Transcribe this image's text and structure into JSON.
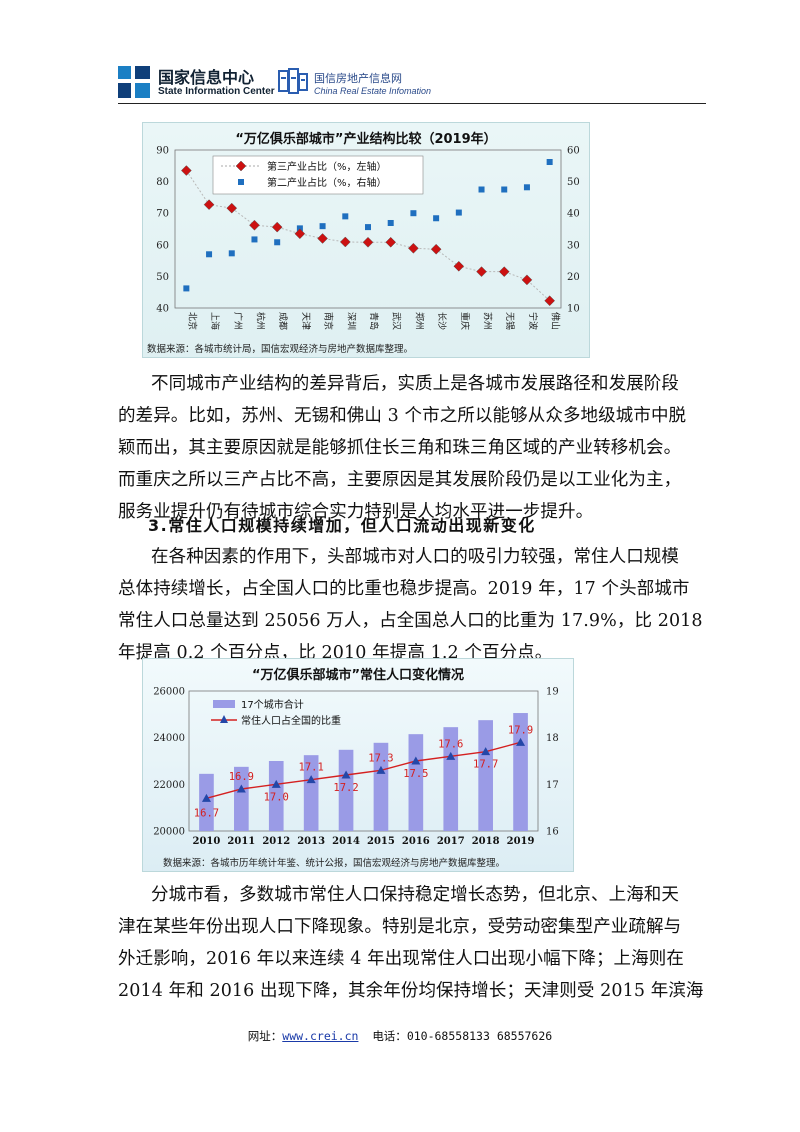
{
  "header": {
    "sic_name_cn": "国家信息中心",
    "sic_name_en": "State Information Center",
    "crei_name_cn": "国信房地产信息网",
    "crei_name_en": "China Real Estate Infomation"
  },
  "colors": {
    "diamond": "#cc1111",
    "square": "#1f6fbf",
    "bar": "#9a9be6",
    "line": "#d42020",
    "triangle": "#2447a8"
  },
  "chart1": {
    "chart_data": {
      "type": "scatter",
      "title": "“万亿俱乐部城市”产业结构比较（2019年）",
      "categories": [
        "北京",
        "上海",
        "广州",
        "杭州",
        "成都",
        "天津",
        "南京",
        "深圳",
        "青岛",
        "武汉",
        "郑州",
        "长沙",
        "重庆",
        "苏州",
        "无锡",
        "宁波",
        "佛山"
      ],
      "series": [
        {
          "name": "第三产业占比（%，左轴）",
          "axis": "left",
          "marker": "diamond",
          "values": [
            83.5,
            72.7,
            71.6,
            66.2,
            65.6,
            63.5,
            62.0,
            60.9,
            60.8,
            60.8,
            58.9,
            58.6,
            53.2,
            51.5,
            51.5,
            48.9,
            42.3
          ]
        },
        {
          "name": "第二产业占比（%，右轴）",
          "axis": "right",
          "marker": "square",
          "values": [
            16.2,
            27.0,
            27.3,
            31.7,
            30.8,
            35.2,
            35.9,
            39.0,
            35.6,
            36.9,
            40.0,
            38.4,
            40.2,
            47.5,
            47.5,
            48.2,
            56.2
          ]
        }
      ],
      "left_axis": {
        "range": [
          40,
          90
        ],
        "ticks": [
          "40",
          "50",
          "60",
          "70",
          "80",
          "90"
        ]
      },
      "right_axis": {
        "range": [
          10,
          60
        ],
        "ticks": [
          "10",
          "20",
          "30",
          "40",
          "50",
          "60"
        ]
      },
      "legend": "top-left",
      "grid": false
    },
    "source": "数据来源：各城市统计局，国信宏观经济与房地产数据库整理。"
  },
  "paragraph1": [
    "不同城市产业结构的差异背后，实质上是各城市发展路径和发展阶段",
    "的差异。比如，苏州、无锡和佛山 3 个市之所以能够从众多地级城市中脱",
    "颖而出，其主要原因就是能够抓住长三角和珠三角区域的产业转移机会。",
    "而重庆之所以三产占比不高，主要原因是其发展阶段仍是以工业化为主，",
    "服务业提升仍有待城市综合实力特别是人均水平进一步提升。"
  ],
  "heading3": "3.常住人口规模持续增加，但人口流动出现新变化",
  "paragraph2": [
    "在各种因素的作用下，头部城市对人口的吸引力较强，常住人口规模",
    "总体持续增长，占全国人口的比重也稳步提高。2019 年，17 个头部城市",
    "常住人口总量达到 25056 万人，占全国总人口的比重为 17.9%，比 2018",
    "年提高 0.2 个百分点，比 2010 年提高 1.2 个百分点。"
  ],
  "chart2": {
    "chart_data": {
      "type": "bar",
      "title": "“万亿俱乐部城市”常住人口变化情况",
      "categories": [
        "2010",
        "2011",
        "2012",
        "2013",
        "2014",
        "2015",
        "2016",
        "2017",
        "2018",
        "2019"
      ],
      "series": [
        {
          "name": "17个城市合计",
          "type": "bar",
          "axis": "left",
          "values": [
            22450,
            22750,
            23000,
            23250,
            23480,
            23780,
            24150,
            24450,
            24750,
            25056
          ]
        },
        {
          "name": "常住人口占全国的比重",
          "type": "line",
          "axis": "right",
          "values": [
            16.7,
            16.9,
            17.0,
            17.1,
            17.2,
            17.3,
            17.5,
            17.6,
            17.7,
            17.9
          ],
          "labels": [
            "16.7",
            "16.9",
            "17.0",
            "17.1",
            "17.2",
            "17.3",
            "17.5",
            "17.6",
            "17.7",
            "17.9"
          ]
        }
      ],
      "left_axis": {
        "range": [
          20000,
          26000
        ],
        "ticks": [
          "20000",
          "22000",
          "24000",
          "26000"
        ]
      },
      "right_axis": {
        "range": [
          16,
          19
        ],
        "ticks": [
          "16",
          "17",
          "18",
          "19"
        ]
      },
      "legend": "top-left"
    },
    "source": "数据来源：各城市历年统计年鉴、统计公报，国信宏观经济与房地产数据库整理。"
  },
  "paragraph3": [
    "分城市看，多数城市常住人口保持稳定增长态势，但北京、上海和天",
    "津在某些年份出现人口下降现象。特别是北京，受劳动密集型产业疏解与",
    "外迁影响，2016 年以来连续 4 年出现常住人口出现小幅下降；上海则在",
    "2014 年和 2016 出现下降，其余年份均保持增长；天津则受 2015 年滨海"
  ],
  "footer": {
    "url_label": "网址：",
    "url": "www.crei.cn",
    "phone_label": "电话：",
    "phone": "010-68558133 68557626"
  }
}
